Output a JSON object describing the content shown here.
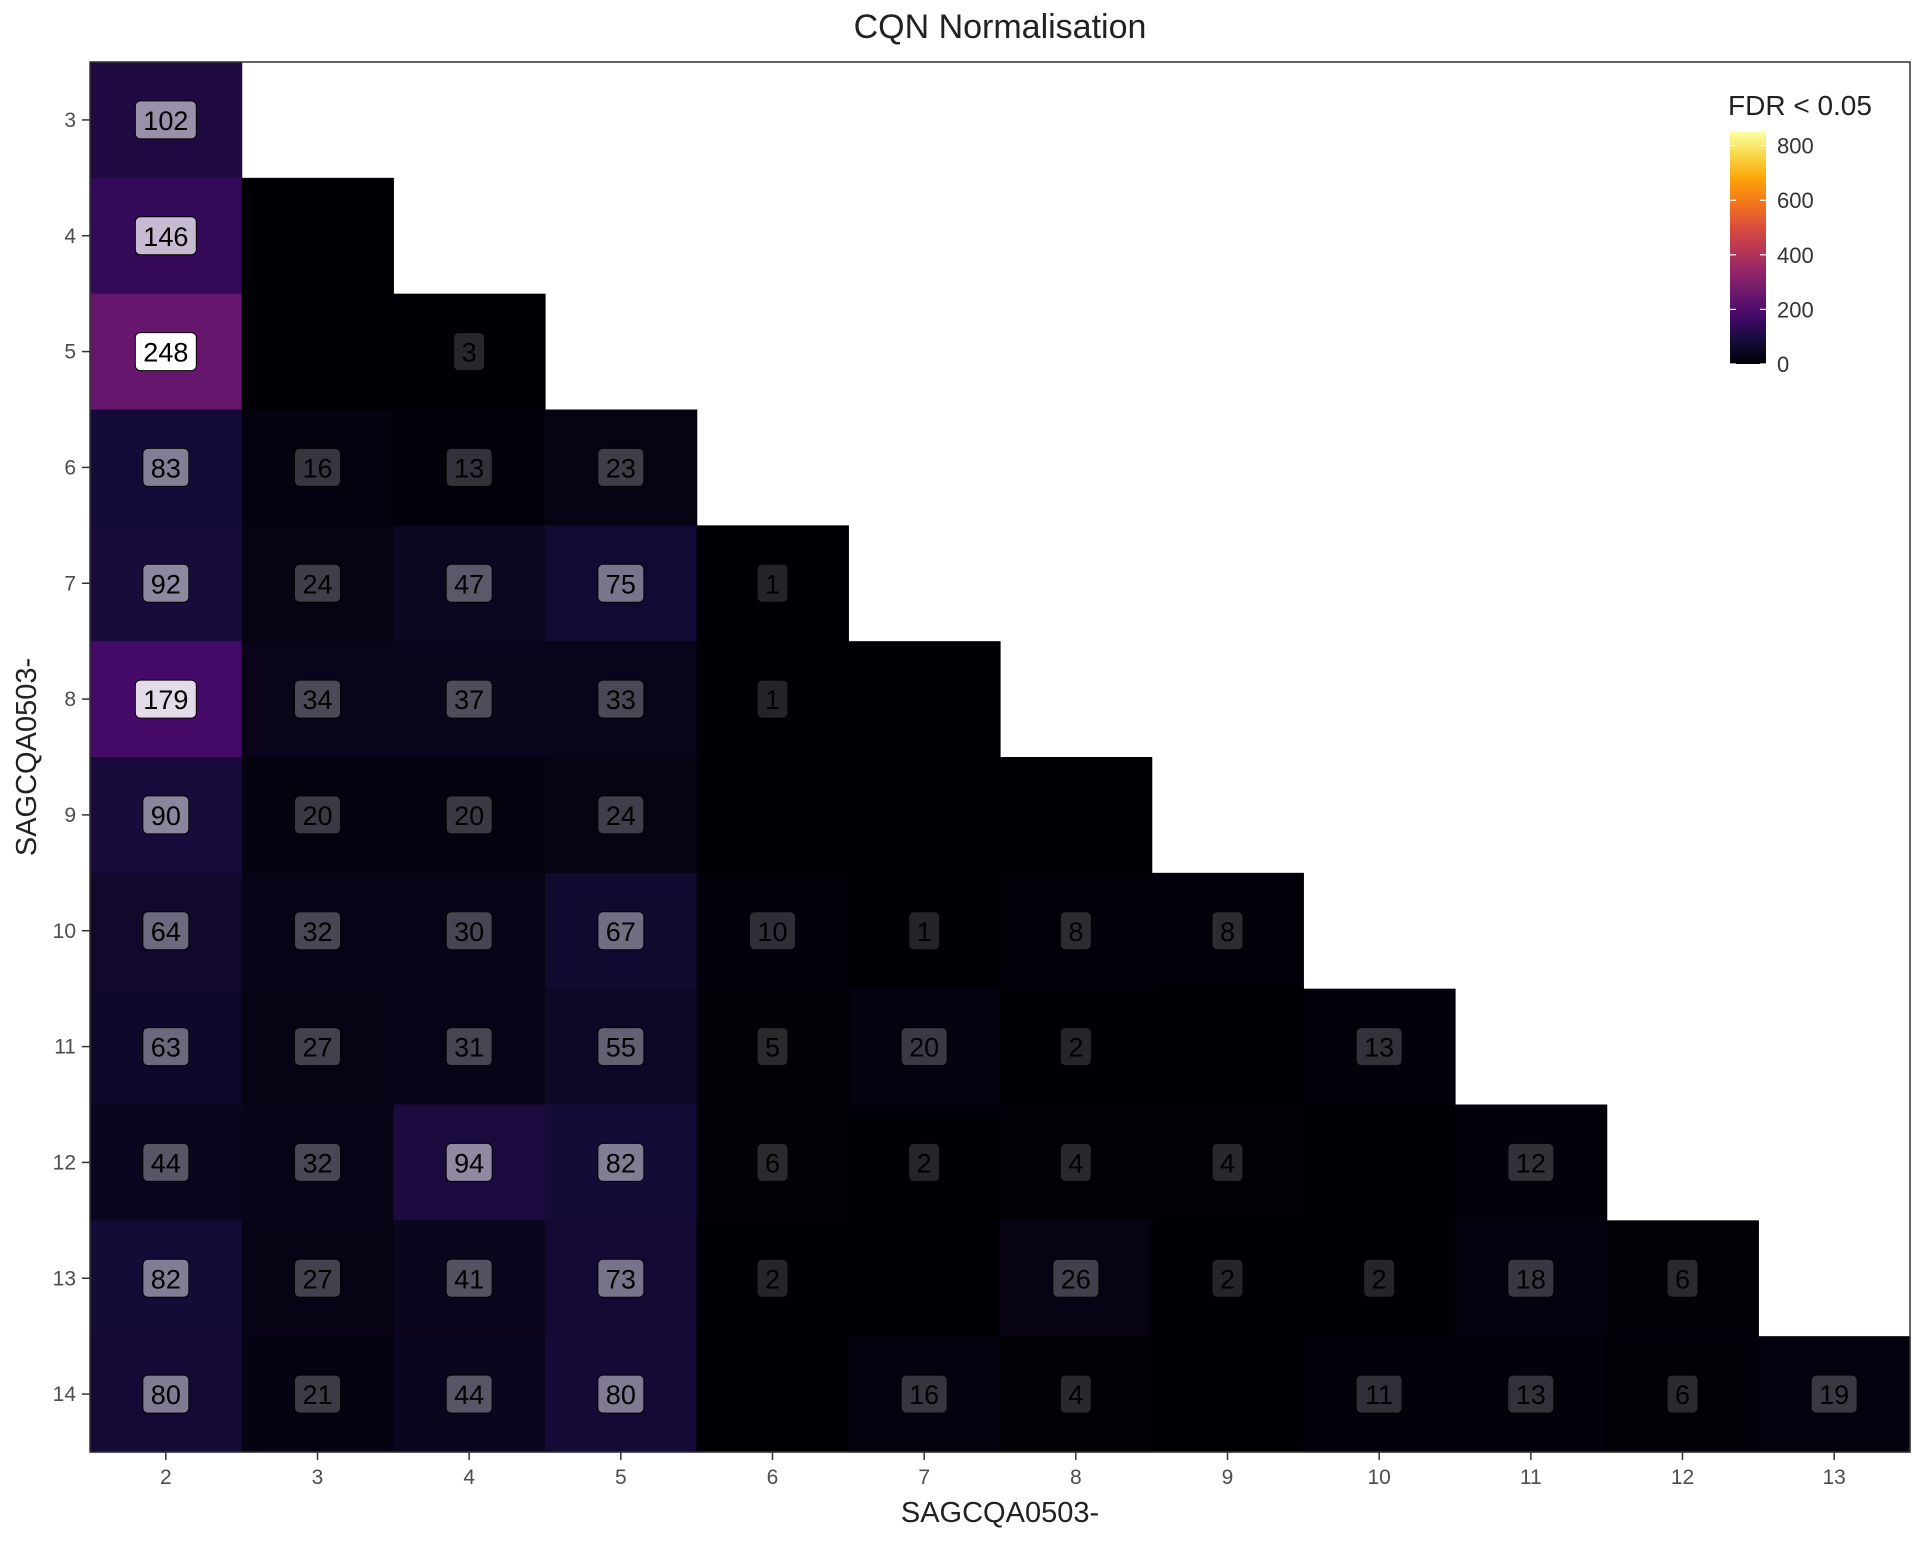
{
  "chart_data": {
    "type": "heatmap",
    "title": "CQN Normalisation",
    "xlabel": "SAGCQA0503-",
    "ylabel": "SAGCQA0503-",
    "x_categories": [
      "2",
      "3",
      "4",
      "5",
      "6",
      "7",
      "8",
      "9",
      "10",
      "11",
      "12",
      "13"
    ],
    "y_categories": [
      "3",
      "4",
      "5",
      "6",
      "7",
      "8",
      "9",
      "10",
      "11",
      "12",
      "13",
      "14"
    ],
    "legend": {
      "title": "FDR < 0.05",
      "min": 0,
      "max": 850,
      "ticks": [
        0,
        200,
        400,
        600,
        800
      ],
      "placement": "top-right",
      "colormap": "inferno"
    },
    "cells": [
      {
        "x": "2",
        "y": "3",
        "value": 102
      },
      {
        "x": "2",
        "y": "4",
        "value": 146
      },
      {
        "x": "3",
        "y": "4",
        "value": 0
      },
      {
        "x": "2",
        "y": "5",
        "value": 248
      },
      {
        "x": "3",
        "y": "5",
        "value": 0
      },
      {
        "x": "4",
        "y": "5",
        "value": 3
      },
      {
        "x": "2",
        "y": "6",
        "value": 83
      },
      {
        "x": "3",
        "y": "6",
        "value": 16
      },
      {
        "x": "4",
        "y": "6",
        "value": 13
      },
      {
        "x": "5",
        "y": "6",
        "value": 23
      },
      {
        "x": "2",
        "y": "7",
        "value": 92
      },
      {
        "x": "3",
        "y": "7",
        "value": 24
      },
      {
        "x": "4",
        "y": "7",
        "value": 47
      },
      {
        "x": "5",
        "y": "7",
        "value": 75
      },
      {
        "x": "6",
        "y": "7",
        "value": 1
      },
      {
        "x": "2",
        "y": "8",
        "value": 179
      },
      {
        "x": "3",
        "y": "8",
        "value": 34
      },
      {
        "x": "4",
        "y": "8",
        "value": 37
      },
      {
        "x": "5",
        "y": "8",
        "value": 33
      },
      {
        "x": "6",
        "y": "8",
        "value": 1
      },
      {
        "x": "7",
        "y": "8",
        "value": 0
      },
      {
        "x": "2",
        "y": "9",
        "value": 90
      },
      {
        "x": "3",
        "y": "9",
        "value": 20
      },
      {
        "x": "4",
        "y": "9",
        "value": 20
      },
      {
        "x": "5",
        "y": "9",
        "value": 24
      },
      {
        "x": "6",
        "y": "9",
        "value": 0
      },
      {
        "x": "7",
        "y": "9",
        "value": 0
      },
      {
        "x": "8",
        "y": "9",
        "value": 0
      },
      {
        "x": "2",
        "y": "10",
        "value": 64
      },
      {
        "x": "3",
        "y": "10",
        "value": 32
      },
      {
        "x": "4",
        "y": "10",
        "value": 30
      },
      {
        "x": "5",
        "y": "10",
        "value": 67
      },
      {
        "x": "6",
        "y": "10",
        "value": 10
      },
      {
        "x": "7",
        "y": "10",
        "value": 1
      },
      {
        "x": "8",
        "y": "10",
        "value": 8
      },
      {
        "x": "9",
        "y": "10",
        "value": 8
      },
      {
        "x": "2",
        "y": "11",
        "value": 63
      },
      {
        "x": "3",
        "y": "11",
        "value": 27
      },
      {
        "x": "4",
        "y": "11",
        "value": 31
      },
      {
        "x": "5",
        "y": "11",
        "value": 55
      },
      {
        "x": "6",
        "y": "11",
        "value": 5
      },
      {
        "x": "7",
        "y": "11",
        "value": 20
      },
      {
        "x": "8",
        "y": "11",
        "value": 2
      },
      {
        "x": "9",
        "y": "11",
        "value": 0
      },
      {
        "x": "10",
        "y": "11",
        "value": 13
      },
      {
        "x": "2",
        "y": "12",
        "value": 44
      },
      {
        "x": "3",
        "y": "12",
        "value": 32
      },
      {
        "x": "4",
        "y": "12",
        "value": 94
      },
      {
        "x": "5",
        "y": "12",
        "value": 82
      },
      {
        "x": "6",
        "y": "12",
        "value": 6
      },
      {
        "x": "7",
        "y": "12",
        "value": 2
      },
      {
        "x": "8",
        "y": "12",
        "value": 4
      },
      {
        "x": "9",
        "y": "12",
        "value": 4
      },
      {
        "x": "10",
        "y": "12",
        "value": 0
      },
      {
        "x": "11",
        "y": "12",
        "value": 12
      },
      {
        "x": "2",
        "y": "13",
        "value": 82
      },
      {
        "x": "3",
        "y": "13",
        "value": 27
      },
      {
        "x": "4",
        "y": "13",
        "value": 41
      },
      {
        "x": "5",
        "y": "13",
        "value": 73
      },
      {
        "x": "6",
        "y": "13",
        "value": 2
      },
      {
        "x": "7",
        "y": "13",
        "value": 0
      },
      {
        "x": "8",
        "y": "13",
        "value": 26
      },
      {
        "x": "9",
        "y": "13",
        "value": 2
      },
      {
        "x": "10",
        "y": "13",
        "value": 2
      },
      {
        "x": "11",
        "y": "13",
        "value": 18
      },
      {
        "x": "12",
        "y": "13",
        "value": 6
      },
      {
        "x": "2",
        "y": "14",
        "value": 80
      },
      {
        "x": "3",
        "y": "14",
        "value": 21
      },
      {
        "x": "4",
        "y": "14",
        "value": 44
      },
      {
        "x": "5",
        "y": "14",
        "value": 80
      },
      {
        "x": "6",
        "y": "14",
        "value": 0
      },
      {
        "x": "7",
        "y": "14",
        "value": 16
      },
      {
        "x": "8",
        "y": "14",
        "value": 4
      },
      {
        "x": "9",
        "y": "14",
        "value": 0
      },
      {
        "x": "10",
        "y": "14",
        "value": 11
      },
      {
        "x": "11",
        "y": "14",
        "value": 13
      },
      {
        "x": "12",
        "y": "14",
        "value": 6
      },
      {
        "x": "13",
        "y": "14",
        "value": 19
      }
    ]
  }
}
